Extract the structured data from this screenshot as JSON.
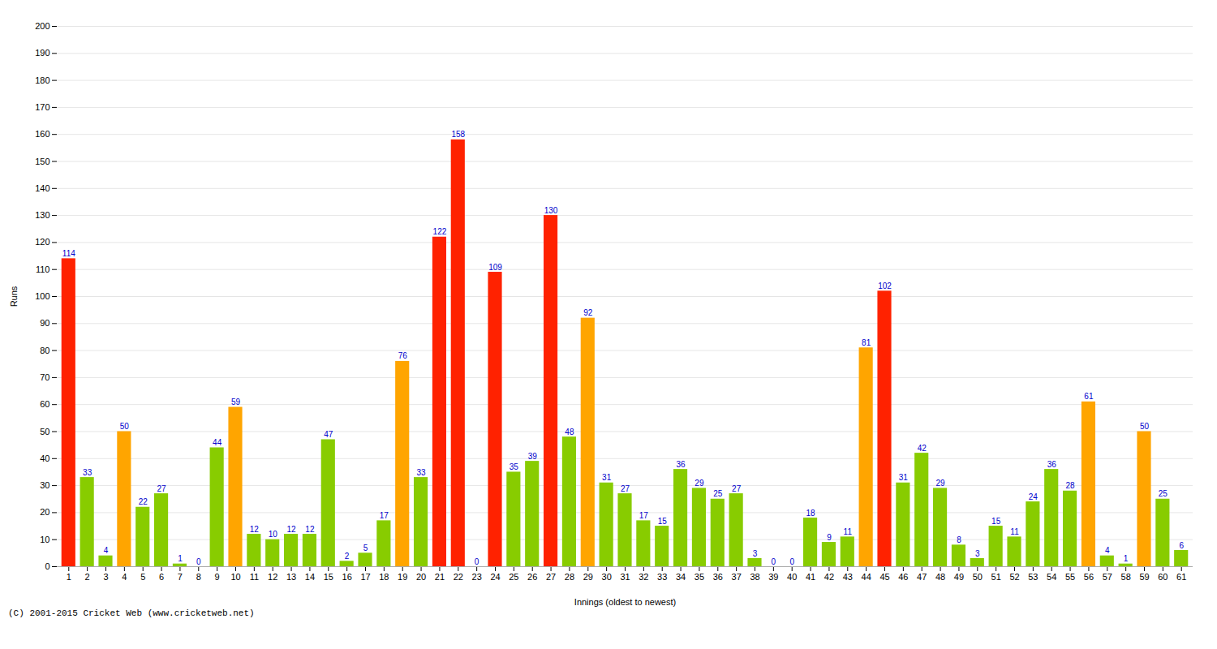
{
  "chart_data": {
    "type": "bar",
    "xlabel": "Innings (oldest to newest)",
    "ylabel": "Runs",
    "caption": "(C) 2001-2015 Cricket Web (www.cricketweb.net)",
    "categories": [
      "1",
      "2",
      "3",
      "4",
      "5",
      "6",
      "7",
      "8",
      "9",
      "10",
      "11",
      "12",
      "13",
      "14",
      "15",
      "16",
      "17",
      "18",
      "19",
      "20",
      "21",
      "22",
      "23",
      "24",
      "25",
      "26",
      "27",
      "28",
      "29",
      "30",
      "31",
      "32",
      "33",
      "34",
      "35",
      "36",
      "37",
      "38",
      "39",
      "40",
      "41",
      "42",
      "43",
      "44",
      "45",
      "46",
      "47",
      "48",
      "49",
      "50",
      "51",
      "52",
      "53",
      "54",
      "55",
      "56",
      "57",
      "58",
      "59",
      "60",
      "61"
    ],
    "values": [
      114,
      33,
      4,
      50,
      22,
      27,
      1,
      0,
      44,
      59,
      12,
      10,
      12,
      12,
      47,
      2,
      5,
      17,
      76,
      33,
      122,
      158,
      0,
      109,
      35,
      39,
      130,
      48,
      92,
      31,
      27,
      17,
      15,
      36,
      29,
      25,
      27,
      3,
      0,
      0,
      18,
      9,
      11,
      81,
      102,
      31,
      42,
      29,
      8,
      3,
      15,
      11,
      24,
      36,
      28,
      61,
      4,
      1,
      50,
      25,
      6
    ],
    "colors": [
      "#ff2200",
      "#88cc00",
      "#88cc00",
      "#ffa500",
      "#88cc00",
      "#88cc00",
      "#88cc00",
      "#88cc00",
      "#88cc00",
      "#ffa500",
      "#88cc00",
      "#88cc00",
      "#88cc00",
      "#88cc00",
      "#88cc00",
      "#88cc00",
      "#88cc00",
      "#88cc00",
      "#ffa500",
      "#88cc00",
      "#ff2200",
      "#ff2200",
      "#88cc00",
      "#ff2200",
      "#88cc00",
      "#88cc00",
      "#ff2200",
      "#88cc00",
      "#ffa500",
      "#88cc00",
      "#88cc00",
      "#88cc00",
      "#88cc00",
      "#88cc00",
      "#88cc00",
      "#88cc00",
      "#88cc00",
      "#88cc00",
      "#88cc00",
      "#88cc00",
      "#88cc00",
      "#88cc00",
      "#88cc00",
      "#ffa500",
      "#ff2200",
      "#88cc00",
      "#88cc00",
      "#88cc00",
      "#88cc00",
      "#88cc00",
      "#88cc00",
      "#88cc00",
      "#88cc00",
      "#88cc00",
      "#88cc00",
      "#ffa500",
      "#88cc00",
      "#88cc00",
      "#ffa500",
      "#88cc00",
      "#88cc00"
    ],
    "ylim": [
      0,
      200
    ],
    "yticks": [
      0,
      10,
      20,
      30,
      40,
      50,
      60,
      70,
      80,
      90,
      100,
      110,
      120,
      130,
      140,
      150,
      160,
      170,
      180,
      190,
      200
    ],
    "grid": true,
    "data_labels": true
  }
}
